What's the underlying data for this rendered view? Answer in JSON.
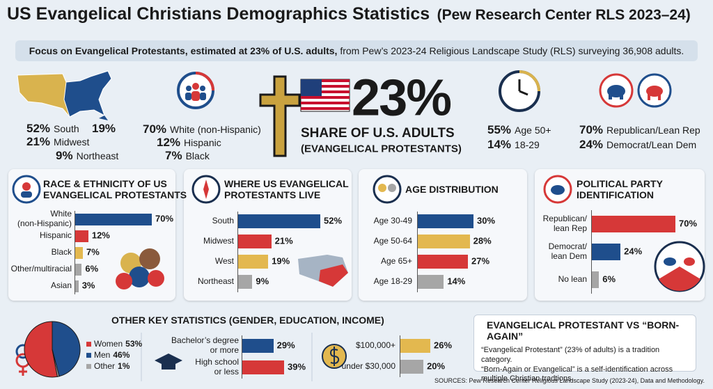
{
  "header": {
    "title": "US Evangelical Christians Demographics Statistics",
    "title_note": "(Pew Research Center RLS 2023–24)",
    "subtitle_bold": "Focus on Evangelical Protestants, estimated at 23% of U.S. adults,",
    "subtitle": "from Pew’s 2023-24 Religious Landscape Study (RLS) surveying 36,908 adults."
  },
  "highlights": {
    "region": [
      {
        "value": "52%",
        "label": "South"
      },
      {
        "value": "19%"
      },
      {
        "value": "21%",
        "label": "Midwest"
      },
      {
        "value": "9%",
        "label": "Northeast"
      }
    ],
    "race": [
      {
        "value": "70%",
        "label": "White (non-Hispanic)"
      },
      {
        "value": "12%",
        "label": "Hispanic"
      },
      {
        "value": "7%",
        "label": "Black"
      }
    ],
    "share": {
      "value": "23%",
      "label": "SHARE OF U.S. ADULTS",
      "note": "(EVANGELICAL PROTESTANTS)"
    },
    "age": [
      {
        "value": "55%",
        "label": "Age 50+"
      },
      {
        "value": "14%",
        "label": "18-29"
      }
    ],
    "party": [
      {
        "value": "70%",
        "label": "Republican/Lean Rep"
      },
      {
        "value": "24%",
        "label": "Democrat/Lean Dem"
      }
    ]
  },
  "chart_data": [
    {
      "type": "hbar",
      "title": "RACE & ETHNICITY OF US\nEVANGELICAL PROTESTANTS",
      "categories": [
        "White\n(non-Hispanic)",
        "Hispanic",
        "Black",
        "Other/multiracial",
        "Asian"
      ],
      "values": [
        70,
        12,
        7,
        6,
        3
      ],
      "value_labels": [
        "70%",
        "12%",
        "7%",
        "6%",
        "3%"
      ],
      "colors": [
        "#1f4e8c",
        "#d63838",
        "#e3b84f",
        "#a6a6a6",
        "#a6a6a6"
      ]
    },
    {
      "type": "hbar",
      "title": "WHERE US EVANGELICAL\nPROTESTANTS LIVE",
      "categories": [
        "South",
        "Midwest",
        "West",
        "Northeast"
      ],
      "values": [
        52,
        21,
        19,
        9
      ],
      "value_labels": [
        "52%",
        "21%",
        "19%",
        "9%"
      ],
      "colors": [
        "#1f4e8c",
        "#d63838",
        "#e3b84f",
        "#a6a6a6"
      ]
    },
    {
      "type": "hbar",
      "title": "AGE DISTRIBUTION",
      "categories": [
        "Age 30-49",
        "Age 50-64",
        "Age 65+",
        "Age 18-29"
      ],
      "values": [
        30,
        28,
        27,
        14
      ],
      "value_labels": [
        "30%",
        "28%",
        "27%",
        "14%"
      ],
      "colors": [
        "#1f4e8c",
        "#e3b84f",
        "#d63838",
        "#a6a6a6"
      ]
    },
    {
      "type": "hbar",
      "title": "POLITICAL PARTY\nIDENTIFICATION",
      "categories": [
        "Republican/\nlean Rep",
        "Democrat/\nlean Dem",
        "No lean"
      ],
      "values": [
        70,
        24,
        6
      ],
      "value_labels": [
        "70%",
        "24%",
        "6%"
      ],
      "colors": [
        "#d63838",
        "#1f4e8c",
        "#a6a6a6"
      ]
    },
    {
      "type": "pie",
      "categories": [
        "Women",
        "Men",
        "Other"
      ],
      "values": [
        53,
        46,
        1
      ],
      "value_labels": [
        "53%",
        "46%",
        "1%"
      ],
      "colors": [
        "#d63838",
        "#1f4e8c",
        "#a6a6a6"
      ]
    },
    {
      "type": "hbar",
      "categories": [
        "Bachelor’s degree\nor more",
        "High school\nor less"
      ],
      "values": [
        29,
        39
      ],
      "value_labels": [
        "29%",
        "39%"
      ],
      "colors": [
        "#1f4e8c",
        "#d63838"
      ]
    },
    {
      "type": "hbar",
      "categories": [
        "$100,000+",
        "under $30,000"
      ],
      "values": [
        26,
        20
      ],
      "value_labels": [
        "26%",
        "20%"
      ],
      "colors": [
        "#e3b84f",
        "#a6a6a6"
      ]
    }
  ],
  "section_title": "OTHER KEY STATISTICS (GENDER, EDUCATION, INCOME)",
  "comparison": {
    "title": "EVANGELICAL PROTESTANT VS “BORN-AGAIN”",
    "paragraphs": [
      "“Evangelical Protestant” (23% of adults) is a tradition category.",
      "“Born-Again or Evangelical” is a self-identification across multiple Christian tradtions."
    ]
  },
  "sources": "SOURCES: Pew Research Center Religious Landscape Study (2023-24), Data and Methodology."
}
